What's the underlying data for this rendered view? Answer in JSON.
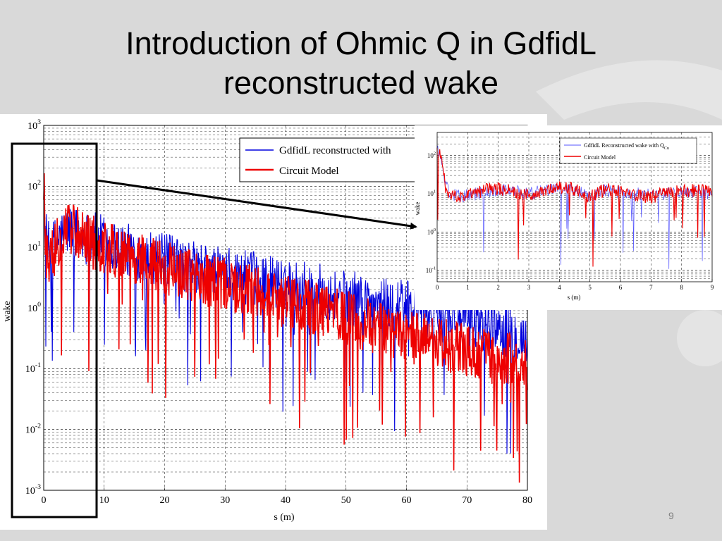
{
  "slide": {
    "title_line1": "Introduction of Ohmic Q in GdfidL",
    "title_line2": "reconstructed wake",
    "page_number": "9"
  },
  "colors": {
    "blue_series": "#0000dd",
    "red_series": "#ee0000",
    "background": "#d9d9d9"
  },
  "chart_data": [
    {
      "type": "line",
      "title": "",
      "xlabel": "s (m)",
      "ylabel": "wake",
      "xlim": [
        0,
        80
      ],
      "ylim": [
        0.001,
        1000
      ],
      "yscale": "log",
      "grid": true,
      "legend_position": "top-right",
      "x_ticks": [
        "0",
        "10",
        "20",
        "30",
        "40",
        "50",
        "60",
        "70",
        "80"
      ],
      "y_ticks": [
        "10",
        "10",
        "10",
        "10",
        "10",
        "10",
        "10"
      ],
      "y_tick_exponents": [
        "-3",
        "-2",
        "-1",
        "0",
        "1",
        "2",
        "3"
      ],
      "series": [
        {
          "name": "GdfidL reconstructed with",
          "color": "#0000dd",
          "x": [
            0,
            0.3,
            1,
            2,
            3,
            4,
            5,
            6,
            8,
            10,
            15,
            20,
            25,
            30,
            35,
            40,
            45,
            50,
            55,
            60,
            65,
            70,
            75,
            80
          ],
          "y": [
            200,
            15,
            8,
            12,
            15,
            20,
            18,
            15,
            14,
            12,
            8,
            6,
            4.5,
            3.5,
            3,
            2.5,
            2,
            1.5,
            1.2,
            1,
            0.8,
            0.6,
            0.5,
            0.3
          ]
        },
        {
          "name": "Circuit Model",
          "color": "#ee0000",
          "x": [
            0,
            0.3,
            1,
            2,
            3,
            4,
            5,
            6,
            8,
            10,
            15,
            20,
            25,
            30,
            35,
            40,
            45,
            50,
            55,
            60,
            65,
            70,
            75,
            80
          ],
          "y": [
            150,
            8,
            7,
            10,
            14,
            22,
            20,
            14,
            12,
            10,
            6.5,
            4.5,
            3,
            2.4,
            1.8,
            1.3,
            1,
            0.7,
            0.45,
            0.33,
            0.26,
            0.2,
            0.15,
            0.12
          ]
        }
      ]
    },
    {
      "type": "line",
      "title": "",
      "xlabel": "s (m)",
      "ylabel": "wake",
      "xlim": [
        0,
        9
      ],
      "ylim": [
        0.05,
        400
      ],
      "yscale": "log",
      "grid": true,
      "legend_position": "top-right",
      "x_ticks": [
        "0",
        "1",
        "2",
        "3",
        "4",
        "5",
        "6",
        "7",
        "8",
        "9"
      ],
      "y_ticks": [
        "10",
        "10",
        "10",
        "10"
      ],
      "y_tick_exponents": [
        "-1",
        "0",
        "1",
        "2"
      ],
      "series": [
        {
          "name": "GdfidL Reconstructed wake with Q",
          "name_subscript": "Cu",
          "color": "#5555ff",
          "x": [
            0,
            0.1,
            0.3,
            0.5,
            1,
            1.5,
            2,
            2.5,
            3,
            3.5,
            4,
            4.5,
            5,
            5.5,
            6,
            6.5,
            7,
            7.5,
            8,
            8.5,
            9
          ],
          "y": [
            150,
            100,
            15,
            9,
            9,
            11,
            13,
            12,
            10,
            12,
            14,
            12,
            9,
            12,
            11,
            10,
            9,
            10,
            11,
            11,
            10
          ]
        },
        {
          "name": "Circuit Model",
          "color": "#ee0000",
          "x": [
            0,
            0.1,
            0.3,
            0.5,
            1,
            1.5,
            2,
            2.5,
            3,
            3.5,
            4,
            4.5,
            5,
            5.5,
            6,
            6.5,
            7,
            7.5,
            8,
            8.5,
            9
          ],
          "y": [
            150,
            110,
            12,
            8,
            9,
            12,
            14,
            11,
            9,
            13,
            15,
            13,
            8,
            13,
            12,
            9,
            8,
            11,
            12,
            12,
            11
          ]
        }
      ]
    }
  ]
}
